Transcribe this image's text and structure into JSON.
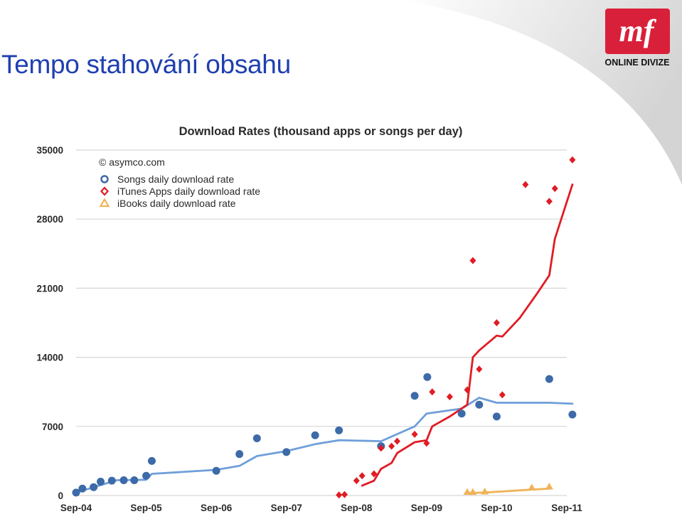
{
  "slide": {
    "title": "Tempo stahování obsahu",
    "logo_text": "ONLINE DIVIZE",
    "logo_mark": "mf"
  },
  "colors": {
    "title_blue": "#1f3fb0",
    "logo_red": "#d9203a",
    "songs": "#3d6aa8",
    "songs_line": "#6f9fd9",
    "apps": "#e01c24",
    "books": "#f0b35a"
  },
  "chart_data": {
    "type": "scatter",
    "title": "Download Rates (thousand apps or songs per day)",
    "credit": "© asymco.com",
    "ylim": [
      0,
      35000
    ],
    "yticks": [
      0,
      7000,
      14000,
      21000,
      28000,
      35000
    ],
    "ytick_labels": [
      "0",
      "7000",
      "14000",
      "21000",
      "28000",
      "35000"
    ],
    "xlim": [
      2004.67,
      2011.85
    ],
    "xticks": [
      2004.67,
      2005.67,
      2006.67,
      2007.67,
      2008.67,
      2009.67,
      2010.67,
      2011.67
    ],
    "xtick_labels": [
      "Sep-04",
      "Sep-05",
      "Sep-06",
      "Sep-07",
      "Sep-08",
      "Sep-09",
      "Sep-10",
      "Sep-11"
    ],
    "grid": true,
    "legend_position": "top-left",
    "series": [
      {
        "name": "Songs daily download rate",
        "marker": "circle",
        "color": "#3d6aa8",
        "points": [
          [
            2004.67,
            300
          ],
          [
            2004.76,
            700
          ],
          [
            2004.92,
            850
          ],
          [
            2005.02,
            1400
          ],
          [
            2005.18,
            1500
          ],
          [
            2005.35,
            1550
          ],
          [
            2005.5,
            1550
          ],
          [
            2005.67,
            2000
          ],
          [
            2005.75,
            3500
          ],
          [
            2006.67,
            2500
          ],
          [
            2007.0,
            4200
          ],
          [
            2007.25,
            5800
          ],
          [
            2007.67,
            4400
          ],
          [
            2008.08,
            6100
          ],
          [
            2008.42,
            6600
          ],
          [
            2009.02,
            5000
          ],
          [
            2009.5,
            10100
          ],
          [
            2009.68,
            12000
          ],
          [
            2010.17,
            8300
          ],
          [
            2010.42,
            9200
          ],
          [
            2010.67,
            8000
          ],
          [
            2011.42,
            11800
          ],
          [
            2011.75,
            8200
          ]
        ]
      },
      {
        "name": "Songs trend",
        "kind": "line",
        "color": "#6f9fd9",
        "points": [
          [
            2004.67,
            300
          ],
          [
            2004.9,
            800
          ],
          [
            2005.25,
            1550
          ],
          [
            2005.67,
            1600
          ],
          [
            2005.75,
            2200
          ],
          [
            2006.67,
            2600
          ],
          [
            2007.0,
            3000
          ],
          [
            2007.25,
            4000
          ],
          [
            2007.67,
            4500
          ],
          [
            2008.08,
            5200
          ],
          [
            2008.42,
            5600
          ],
          [
            2009.02,
            5500
          ],
          [
            2009.5,
            7000
          ],
          [
            2009.67,
            8300
          ],
          [
            2010.17,
            8800
          ],
          [
            2010.42,
            9900
          ],
          [
            2010.67,
            9400
          ],
          [
            2011.42,
            9400
          ],
          [
            2011.75,
            9300
          ]
        ]
      },
      {
        "name": "iTunes Apps daily download rate",
        "marker": "diamond",
        "color": "#e01c24",
        "points": [
          [
            2008.42,
            50
          ],
          [
            2008.5,
            100
          ],
          [
            2008.67,
            1500
          ],
          [
            2008.75,
            2000
          ],
          [
            2008.92,
            2200
          ],
          [
            2009.02,
            4800
          ],
          [
            2009.17,
            5000
          ],
          [
            2009.25,
            5500
          ],
          [
            2009.5,
            6200
          ],
          [
            2009.67,
            5300
          ],
          [
            2009.75,
            10500
          ],
          [
            2010.0,
            10000
          ],
          [
            2010.25,
            10700
          ],
          [
            2010.33,
            23800
          ],
          [
            2010.42,
            12800
          ],
          [
            2010.67,
            17500
          ],
          [
            2010.75,
            10200
          ],
          [
            2011.08,
            31500
          ],
          [
            2011.42,
            29800
          ],
          [
            2011.5,
            31100
          ],
          [
            2011.75,
            34000
          ]
        ]
      },
      {
        "name": "iTunes Apps trend",
        "kind": "line",
        "color": "#e01c24",
        "points": [
          [
            2008.75,
            1000
          ],
          [
            2008.92,
            1500
          ],
          [
            2009.02,
            2700
          ],
          [
            2009.17,
            3300
          ],
          [
            2009.25,
            4300
          ],
          [
            2009.5,
            5400
          ],
          [
            2009.67,
            5600
          ],
          [
            2009.75,
            7000
          ],
          [
            2010.0,
            8000
          ],
          [
            2010.25,
            9200
          ],
          [
            2010.33,
            14000
          ],
          [
            2010.42,
            14700
          ],
          [
            2010.67,
            16200
          ],
          [
            2010.75,
            16100
          ],
          [
            2011.0,
            18000
          ],
          [
            2011.25,
            20500
          ],
          [
            2011.42,
            22300
          ],
          [
            2011.5,
            26000
          ],
          [
            2011.75,
            31500
          ]
        ]
      },
      {
        "name": "iBooks daily download rate",
        "marker": "triangle",
        "color": "#f0b35a",
        "points": [
          [
            2010.25,
            350
          ],
          [
            2010.33,
            350
          ],
          [
            2010.5,
            400
          ],
          [
            2011.17,
            800
          ],
          [
            2011.42,
            900
          ]
        ]
      },
      {
        "name": "iBooks trend",
        "kind": "line",
        "color": "#f0b35a",
        "points": [
          [
            2010.25,
            250
          ],
          [
            2010.5,
            300
          ],
          [
            2011.17,
            600
          ],
          [
            2011.42,
            700
          ]
        ]
      }
    ],
    "legend": [
      {
        "label": "Songs daily download rate",
        "marker": "circle",
        "color": "#3d6aa8"
      },
      {
        "label": "iTunes Apps daily download rate",
        "marker": "diamond",
        "color": "#e01c24"
      },
      {
        "label": "iBooks daily download rate",
        "marker": "triangle",
        "color": "#f0b35a"
      }
    ]
  }
}
